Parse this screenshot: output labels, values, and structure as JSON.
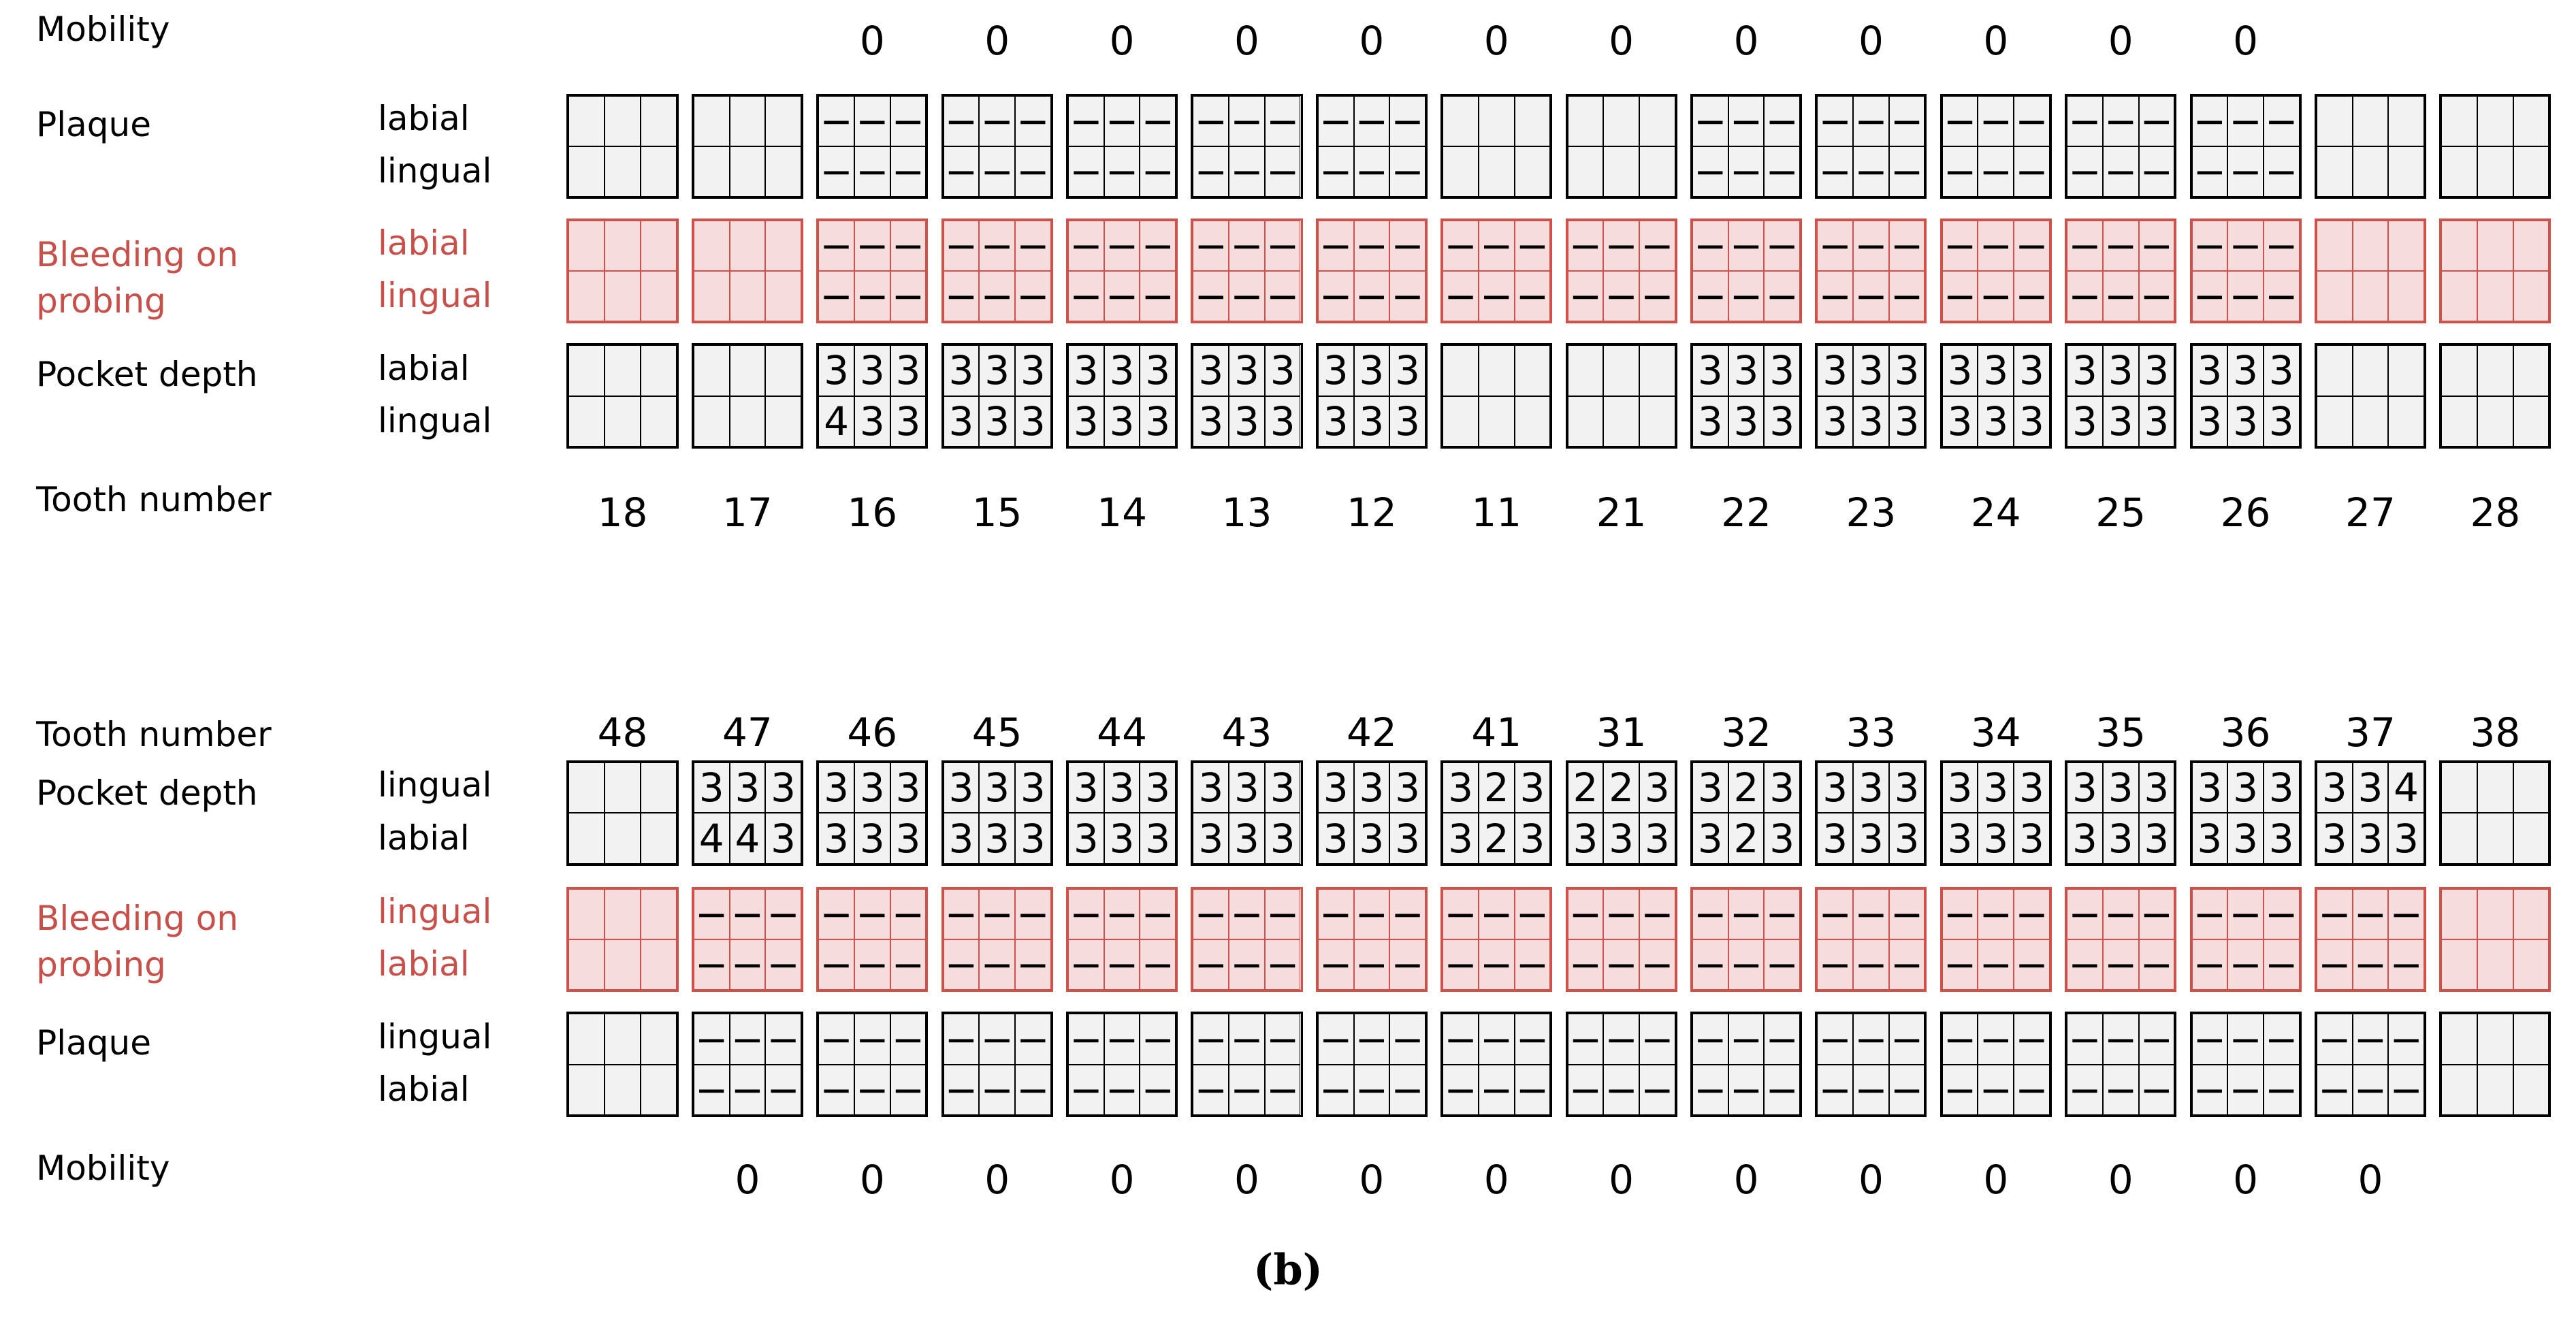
{
  "upper": {
    "labels": {
      "mobility": "Mobility",
      "plaque": "Plaque",
      "bleeding": "Bleeding on probing",
      "pocket": "Pocket depth",
      "tooth": "Tooth number"
    },
    "sides": [
      "labial",
      "lingual"
    ],
    "teeth": [
      {
        "number": "18",
        "mobility": null,
        "plaque": [
          [
            null,
            null,
            null
          ],
          [
            null,
            null,
            null
          ]
        ],
        "bleeding": [
          [
            null,
            null,
            null
          ],
          [
            null,
            null,
            null
          ]
        ],
        "pocket": [
          [
            null,
            null,
            null
          ],
          [
            null,
            null,
            null
          ]
        ]
      },
      {
        "number": "17",
        "mobility": null,
        "plaque": [
          [
            null,
            null,
            null
          ],
          [
            null,
            null,
            null
          ]
        ],
        "bleeding": [
          [
            null,
            null,
            null
          ],
          [
            null,
            null,
            null
          ]
        ],
        "pocket": [
          [
            null,
            null,
            null
          ],
          [
            null,
            null,
            null
          ]
        ]
      },
      {
        "number": "16",
        "mobility": 0,
        "plaque": [
          [
            "−",
            "−",
            "−"
          ],
          [
            "−",
            "−",
            "−"
          ]
        ],
        "bleeding": [
          [
            "−",
            "−",
            "−"
          ],
          [
            "−",
            "−",
            "−"
          ]
        ],
        "pocket": [
          [
            3,
            3,
            3
          ],
          [
            4,
            3,
            3
          ]
        ]
      },
      {
        "number": "15",
        "mobility": 0,
        "plaque": [
          [
            "−",
            "−",
            "−"
          ],
          [
            "−",
            "−",
            "−"
          ]
        ],
        "bleeding": [
          [
            "−",
            "−",
            "−"
          ],
          [
            "−",
            "−",
            "−"
          ]
        ],
        "pocket": [
          [
            3,
            3,
            3
          ],
          [
            3,
            3,
            3
          ]
        ]
      },
      {
        "number": "14",
        "mobility": 0,
        "plaque": [
          [
            "−",
            "−",
            "−"
          ],
          [
            "−",
            "−",
            "−"
          ]
        ],
        "bleeding": [
          [
            "−",
            "−",
            "−"
          ],
          [
            "−",
            "−",
            "−"
          ]
        ],
        "pocket": [
          [
            3,
            3,
            3
          ],
          [
            3,
            3,
            3
          ]
        ]
      },
      {
        "number": "13",
        "mobility": 0,
        "plaque": [
          [
            "−",
            "−",
            "−"
          ],
          [
            "−",
            "−",
            "−"
          ]
        ],
        "bleeding": [
          [
            "−",
            "−",
            "−"
          ],
          [
            "−",
            "−",
            "−"
          ]
        ],
        "pocket": [
          [
            3,
            3,
            3
          ],
          [
            3,
            3,
            3
          ]
        ]
      },
      {
        "number": "12",
        "mobility": 0,
        "plaque": [
          [
            "−",
            "−",
            "−"
          ],
          [
            "−",
            "−",
            "−"
          ]
        ],
        "bleeding": [
          [
            "−",
            "−",
            "−"
          ],
          [
            "−",
            "−",
            "−"
          ]
        ],
        "pocket": [
          [
            3,
            3,
            3
          ],
          [
            3,
            3,
            3
          ]
        ]
      },
      {
        "number": "11",
        "mobility": 0,
        "plaque": [
          [
            null,
            null,
            null
          ],
          [
            null,
            null,
            null
          ]
        ],
        "bleeding": [
          [
            "−",
            "−",
            "−"
          ],
          [
            "−",
            "−",
            "−"
          ]
        ],
        "pocket": [
          [
            null,
            null,
            null
          ],
          [
            null,
            null,
            null
          ]
        ]
      },
      {
        "number": "21",
        "mobility": 0,
        "plaque": [
          [
            null,
            null,
            null
          ],
          [
            null,
            null,
            null
          ]
        ],
        "bleeding": [
          [
            "−",
            "−",
            "−"
          ],
          [
            "−",
            "−",
            "−"
          ]
        ],
        "pocket": [
          [
            null,
            null,
            null
          ],
          [
            null,
            null,
            null
          ]
        ]
      },
      {
        "number": "22",
        "mobility": 0,
        "plaque": [
          [
            "−",
            "−",
            "−"
          ],
          [
            "−",
            "−",
            "−"
          ]
        ],
        "bleeding": [
          [
            "−",
            "−",
            "−"
          ],
          [
            "−",
            "−",
            "−"
          ]
        ],
        "pocket": [
          [
            3,
            3,
            3
          ],
          [
            3,
            3,
            3
          ]
        ]
      },
      {
        "number": "23",
        "mobility": 0,
        "plaque": [
          [
            "−",
            "−",
            "−"
          ],
          [
            "−",
            "−",
            "−"
          ]
        ],
        "bleeding": [
          [
            "−",
            "−",
            "−"
          ],
          [
            "−",
            "−",
            "−"
          ]
        ],
        "pocket": [
          [
            3,
            3,
            3
          ],
          [
            3,
            3,
            3
          ]
        ]
      },
      {
        "number": "24",
        "mobility": 0,
        "plaque": [
          [
            "−",
            "−",
            "−"
          ],
          [
            "−",
            "−",
            "−"
          ]
        ],
        "bleeding": [
          [
            "−",
            "−",
            "−"
          ],
          [
            "−",
            "−",
            "−"
          ]
        ],
        "pocket": [
          [
            3,
            3,
            3
          ],
          [
            3,
            3,
            3
          ]
        ]
      },
      {
        "number": "25",
        "mobility": 0,
        "plaque": [
          [
            "−",
            "−",
            "−"
          ],
          [
            "−",
            "−",
            "−"
          ]
        ],
        "bleeding": [
          [
            "−",
            "−",
            "−"
          ],
          [
            "−",
            "−",
            "−"
          ]
        ],
        "pocket": [
          [
            3,
            3,
            3
          ],
          [
            3,
            3,
            3
          ]
        ]
      },
      {
        "number": "26",
        "mobility": 0,
        "plaque": [
          [
            "−",
            "−",
            "−"
          ],
          [
            "−",
            "−",
            "−"
          ]
        ],
        "bleeding": [
          [
            "−",
            "−",
            "−"
          ],
          [
            "−",
            "−",
            "−"
          ]
        ],
        "pocket": [
          [
            3,
            3,
            3
          ],
          [
            3,
            3,
            3
          ]
        ]
      },
      {
        "number": "27",
        "mobility": null,
        "plaque": [
          [
            null,
            null,
            null
          ],
          [
            null,
            null,
            null
          ]
        ],
        "bleeding": [
          [
            null,
            null,
            null
          ],
          [
            null,
            null,
            null
          ]
        ],
        "pocket": [
          [
            null,
            null,
            null
          ],
          [
            null,
            null,
            null
          ]
        ]
      },
      {
        "number": "28",
        "mobility": null,
        "plaque": [
          [
            null,
            null,
            null
          ],
          [
            null,
            null,
            null
          ]
        ],
        "bleeding": [
          [
            null,
            null,
            null
          ],
          [
            null,
            null,
            null
          ]
        ],
        "pocket": [
          [
            null,
            null,
            null
          ],
          [
            null,
            null,
            null
          ]
        ]
      }
    ]
  },
  "lower": {
    "labels": {
      "tooth": "Tooth number",
      "pocket": "Pocket depth",
      "bleeding": "Bleeding on probing",
      "plaque": "Plaque",
      "mobility": "Mobility"
    },
    "sides": [
      "lingual",
      "labial"
    ],
    "teeth": [
      {
        "number": "48",
        "mobility": null,
        "pocket": [
          [
            null,
            null,
            null
          ],
          [
            null,
            null,
            null
          ]
        ],
        "bleeding": [
          [
            null,
            null,
            null
          ],
          [
            null,
            null,
            null
          ]
        ],
        "plaque": [
          [
            null,
            null,
            null
          ],
          [
            null,
            null,
            null
          ]
        ]
      },
      {
        "number": "47",
        "mobility": 0,
        "pocket": [
          [
            3,
            3,
            3
          ],
          [
            4,
            4,
            3
          ]
        ],
        "bleeding": [
          [
            "−",
            "−",
            "−"
          ],
          [
            "−",
            "−",
            "−"
          ]
        ],
        "plaque": [
          [
            "−",
            "−",
            "−"
          ],
          [
            "−",
            "−",
            "−"
          ]
        ]
      },
      {
        "number": "46",
        "mobility": 0,
        "pocket": [
          [
            3,
            3,
            3
          ],
          [
            3,
            3,
            3
          ]
        ],
        "bleeding": [
          [
            "−",
            "−",
            "−"
          ],
          [
            "−",
            "−",
            "−"
          ]
        ],
        "plaque": [
          [
            "−",
            "−",
            "−"
          ],
          [
            "−",
            "−",
            "−"
          ]
        ]
      },
      {
        "number": "45",
        "mobility": 0,
        "pocket": [
          [
            3,
            3,
            3
          ],
          [
            3,
            3,
            3
          ]
        ],
        "bleeding": [
          [
            "−",
            "−",
            "−"
          ],
          [
            "−",
            "−",
            "−"
          ]
        ],
        "plaque": [
          [
            "−",
            "−",
            "−"
          ],
          [
            "−",
            "−",
            "−"
          ]
        ]
      },
      {
        "number": "44",
        "mobility": 0,
        "pocket": [
          [
            3,
            3,
            3
          ],
          [
            3,
            3,
            3
          ]
        ],
        "bleeding": [
          [
            "−",
            "−",
            "−"
          ],
          [
            "−",
            "−",
            "−"
          ]
        ],
        "plaque": [
          [
            "−",
            "−",
            "−"
          ],
          [
            "−",
            "−",
            "−"
          ]
        ]
      },
      {
        "number": "43",
        "mobility": 0,
        "pocket": [
          [
            3,
            3,
            3
          ],
          [
            3,
            3,
            3
          ]
        ],
        "bleeding": [
          [
            "−",
            "−",
            "−"
          ],
          [
            "−",
            "−",
            "−"
          ]
        ],
        "plaque": [
          [
            "−",
            "−",
            "−"
          ],
          [
            "−",
            "−",
            "−"
          ]
        ]
      },
      {
        "number": "42",
        "mobility": 0,
        "pocket": [
          [
            3,
            3,
            3
          ],
          [
            3,
            3,
            3
          ]
        ],
        "bleeding": [
          [
            "−",
            "−",
            "−"
          ],
          [
            "−",
            "−",
            "−"
          ]
        ],
        "plaque": [
          [
            "−",
            "−",
            "−"
          ],
          [
            "−",
            "−",
            "−"
          ]
        ]
      },
      {
        "number": "41",
        "mobility": 0,
        "pocket": [
          [
            3,
            2,
            3
          ],
          [
            3,
            2,
            3
          ]
        ],
        "bleeding": [
          [
            "−",
            "−",
            "−"
          ],
          [
            "−",
            "−",
            "−"
          ]
        ],
        "plaque": [
          [
            "−",
            "−",
            "−"
          ],
          [
            "−",
            "−",
            "−"
          ]
        ]
      },
      {
        "number": "31",
        "mobility": 0,
        "pocket": [
          [
            2,
            2,
            3
          ],
          [
            3,
            3,
            3
          ]
        ],
        "bleeding": [
          [
            "−",
            "−",
            "−"
          ],
          [
            "−",
            "−",
            "−"
          ]
        ],
        "plaque": [
          [
            "−",
            "−",
            "−"
          ],
          [
            "−",
            "−",
            "−"
          ]
        ]
      },
      {
        "number": "32",
        "mobility": 0,
        "pocket": [
          [
            3,
            2,
            3
          ],
          [
            3,
            2,
            3
          ]
        ],
        "bleeding": [
          [
            "−",
            "−",
            "−"
          ],
          [
            "−",
            "−",
            "−"
          ]
        ],
        "plaque": [
          [
            "−",
            "−",
            "−"
          ],
          [
            "−",
            "−",
            "−"
          ]
        ]
      },
      {
        "number": "33",
        "mobility": 0,
        "pocket": [
          [
            3,
            3,
            3
          ],
          [
            3,
            3,
            3
          ]
        ],
        "bleeding": [
          [
            "−",
            "−",
            "−"
          ],
          [
            "−",
            "−",
            "−"
          ]
        ],
        "plaque": [
          [
            "−",
            "−",
            "−"
          ],
          [
            "−",
            "−",
            "−"
          ]
        ]
      },
      {
        "number": "34",
        "mobility": 0,
        "pocket": [
          [
            3,
            3,
            3
          ],
          [
            3,
            3,
            3
          ]
        ],
        "bleeding": [
          [
            "−",
            "−",
            "−"
          ],
          [
            "−",
            "−",
            "−"
          ]
        ],
        "plaque": [
          [
            "−",
            "−",
            "−"
          ],
          [
            "−",
            "−",
            "−"
          ]
        ]
      },
      {
        "number": "35",
        "mobility": 0,
        "pocket": [
          [
            3,
            3,
            3
          ],
          [
            3,
            3,
            3
          ]
        ],
        "bleeding": [
          [
            "−",
            "−",
            "−"
          ],
          [
            "−",
            "−",
            "−"
          ]
        ],
        "plaque": [
          [
            "−",
            "−",
            "−"
          ],
          [
            "−",
            "−",
            "−"
          ]
        ]
      },
      {
        "number": "36",
        "mobility": 0,
        "pocket": [
          [
            3,
            3,
            3
          ],
          [
            3,
            3,
            3
          ]
        ],
        "bleeding": [
          [
            "−",
            "−",
            "−"
          ],
          [
            "−",
            "−",
            "−"
          ]
        ],
        "plaque": [
          [
            "−",
            "−",
            "−"
          ],
          [
            "−",
            "−",
            "−"
          ]
        ]
      },
      {
        "number": "37",
        "mobility": 0,
        "pocket": [
          [
            3,
            3,
            4
          ],
          [
            3,
            3,
            3
          ]
        ],
        "bleeding": [
          [
            "−",
            "−",
            "−"
          ],
          [
            "−",
            "−",
            "−"
          ]
        ],
        "plaque": [
          [
            "−",
            "−",
            "−"
          ],
          [
            "−",
            "−",
            "−"
          ]
        ]
      },
      {
        "number": "38",
        "mobility": null,
        "pocket": [
          [
            null,
            null,
            null
          ],
          [
            null,
            null,
            null
          ]
        ],
        "bleeding": [
          [
            null,
            null,
            null
          ],
          [
            null,
            null,
            null
          ]
        ],
        "plaque": [
          [
            null,
            null,
            null
          ],
          [
            null,
            null,
            null
          ]
        ]
      }
    ]
  },
  "caption": "(b)"
}
